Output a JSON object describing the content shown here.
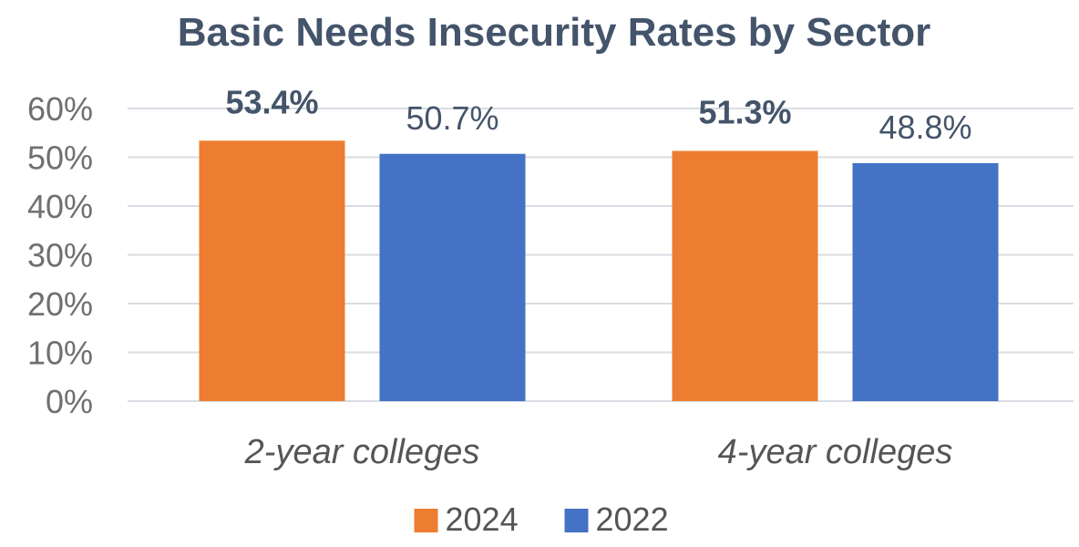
{
  "chart_data": {
    "type": "bar",
    "title": "Basic Needs Insecurity Rates by Sector",
    "xlabel": "",
    "ylabel": "",
    "categories": [
      "2-year colleges",
      "4-year colleges"
    ],
    "series": [
      {
        "name": "2024",
        "values": [
          53.4,
          51.3
        ],
        "color": "#ed7d31",
        "labels": [
          "53.4%",
          "51.3%"
        ],
        "label_bold": true
      },
      {
        "name": "2022",
        "values": [
          50.7,
          48.8
        ],
        "color": "#4472c4",
        "labels": [
          "50.7%",
          "48.8%"
        ],
        "label_bold": false
      }
    ],
    "ylim": [
      0,
      60
    ],
    "yticks": [
      0,
      10,
      20,
      30,
      40,
      50,
      60
    ],
    "ytick_labels": [
      "0%",
      "10%",
      "20%",
      "30%",
      "40%",
      "50%",
      "60%"
    ],
    "grid": true,
    "legend": "bottom"
  }
}
